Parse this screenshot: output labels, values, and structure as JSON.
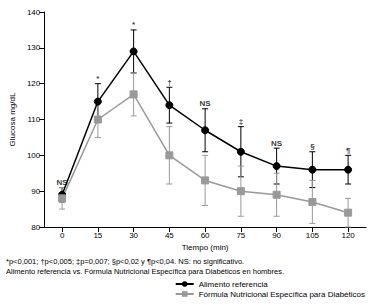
{
  "chart_data": {
    "type": "line",
    "x_label": "Tiempo (min)",
    "y_label": "Glucosa mg/dL",
    "categories": [
      "0",
      "15",
      "30",
      "45",
      "60",
      "75",
      "90",
      "105",
      "120"
    ],
    "series": [
      {
        "name": "Alimento referencia",
        "color": "#000000",
        "marker": "circle",
        "line_style": "solid",
        "values": [
          89,
          115,
          129,
          114,
          107,
          101,
          97,
          96,
          96
        ],
        "errors": [
          2,
          5,
          6,
          5,
          6,
          7,
          5,
          5,
          4
        ]
      },
      {
        "name": "Fórmula Nutricional Específica para Diabéticos",
        "color": "#999999",
        "marker": "square",
        "line_style": "solid",
        "values": [
          88,
          110,
          117,
          100,
          93,
          90,
          89,
          87,
          84
        ],
        "errors": [
          3,
          5,
          6,
          8,
          7,
          7,
          6,
          6,
          4
        ]
      }
    ],
    "point_annotations": [
      "NS",
      "*",
      "*",
      "†",
      "NS",
      "‡",
      "NS",
      "§",
      "¶"
    ],
    "footnote": [
      "*p<0,001; †p<0,005; ‡p=0,007; §p<0,02 y ¶p<0,04. NS: no significativo.",
      "Alimento referencia vs. Fórmula Nutricional Específica para Diabéticos en hombres."
    ],
    "ylim": [
      80,
      140
    ],
    "yticks": [
      80,
      90,
      100,
      110,
      120,
      130,
      140
    ],
    "grid": false,
    "legend": "lower right"
  }
}
